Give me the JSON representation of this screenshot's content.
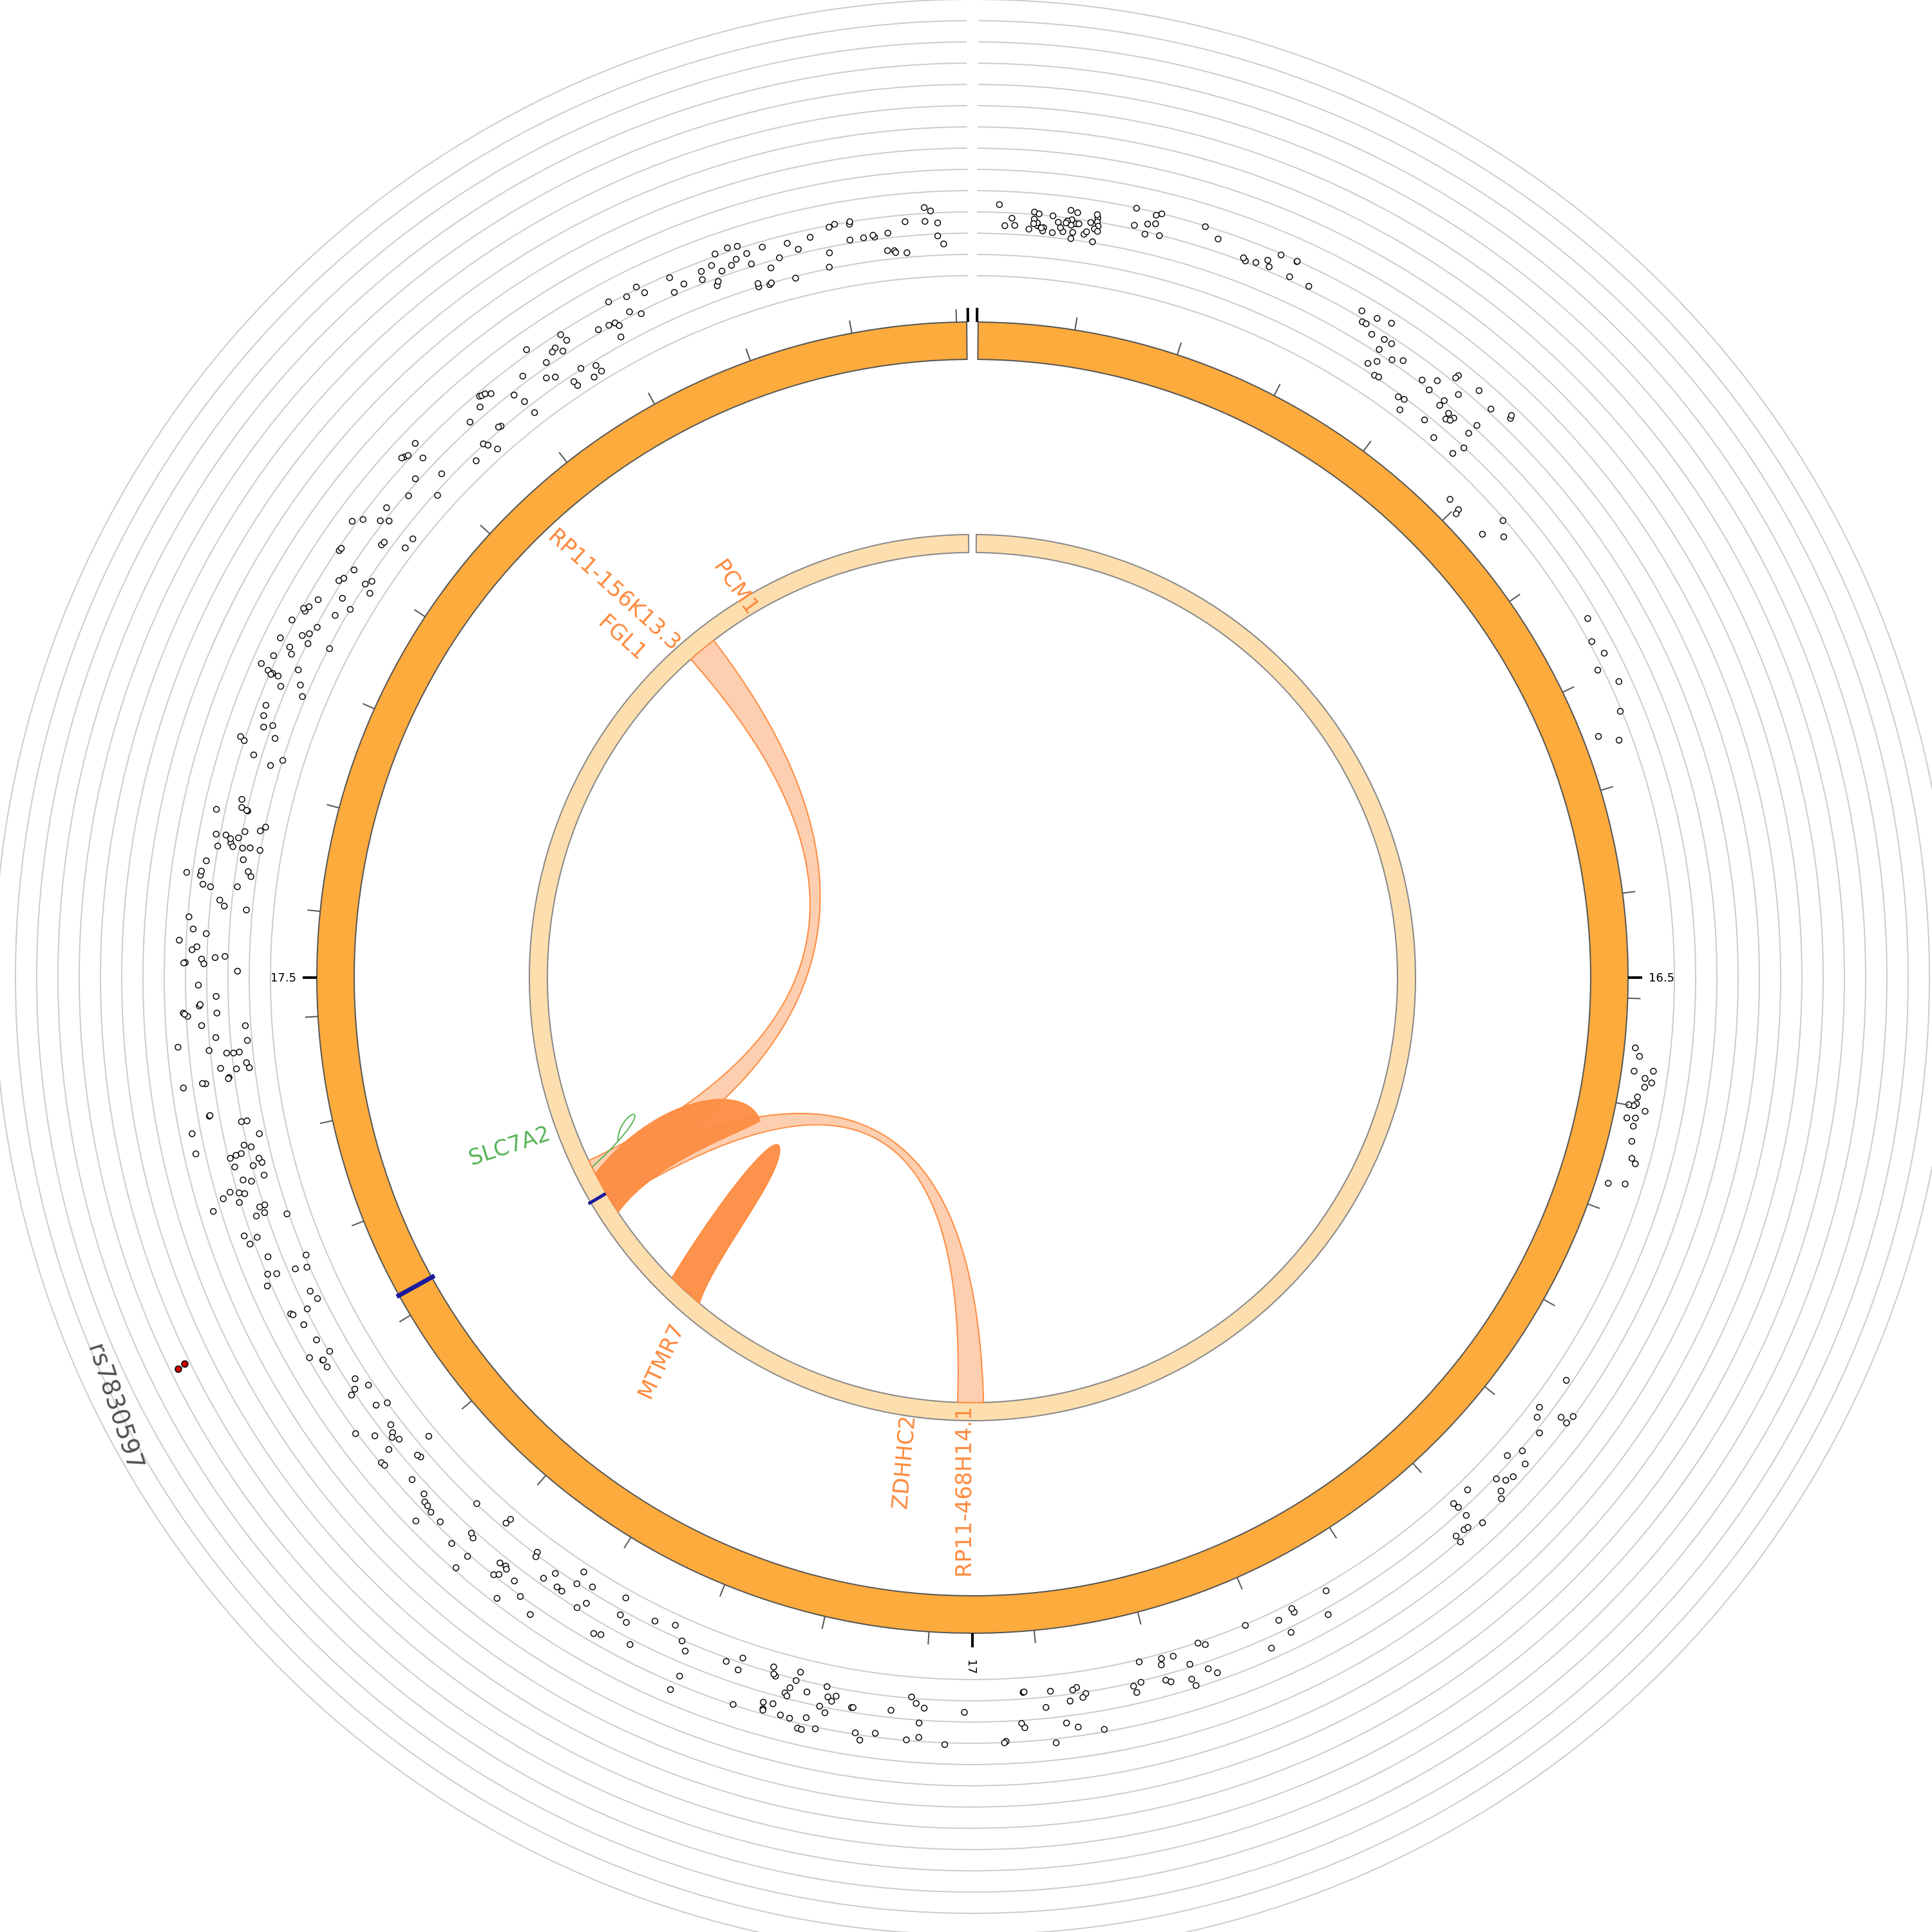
{
  "colors": {
    "ideogram": "#fdab3d",
    "ideogram_stroke": "#555555",
    "gene_ring": "#fddeae",
    "gene_ring_stroke": "#888888",
    "link_light": "#fdc9a6",
    "link_dark": "#fd8c42",
    "link_stroke": "#fd8c42",
    "gene_label": "#fd8c42",
    "eqtl_label": "#5bb55b",
    "highlight": "#1a1a9c",
    "snp_marker": "#cc0000",
    "scatter_point": "#000000",
    "grid": "#cccccc"
  },
  "chart_data": {
    "type": "circos",
    "ideogram_ticks": [
      {
        "position_mb": 16.5,
        "label": "16.5"
      },
      {
        "position_mb": 17,
        "label": "17"
      },
      {
        "position_mb": 17.5,
        "label": "17.5"
      }
    ],
    "genes": [
      {
        "name": "PCM1",
        "kind": "gene"
      },
      {
        "name": "RP11-156K13.3",
        "kind": "gene"
      },
      {
        "name": "FGL1",
        "kind": "gene"
      },
      {
        "name": "SLC7A2",
        "kind": "eqtl"
      },
      {
        "name": "MTMR7",
        "kind": "gene"
      },
      {
        "name": "ZDHHC2",
        "kind": "gene"
      },
      {
        "name": "RP11-468H14.1",
        "kind": "gene"
      }
    ],
    "snp": {
      "name": "rs7830597"
    },
    "grid_circles": 14
  }
}
